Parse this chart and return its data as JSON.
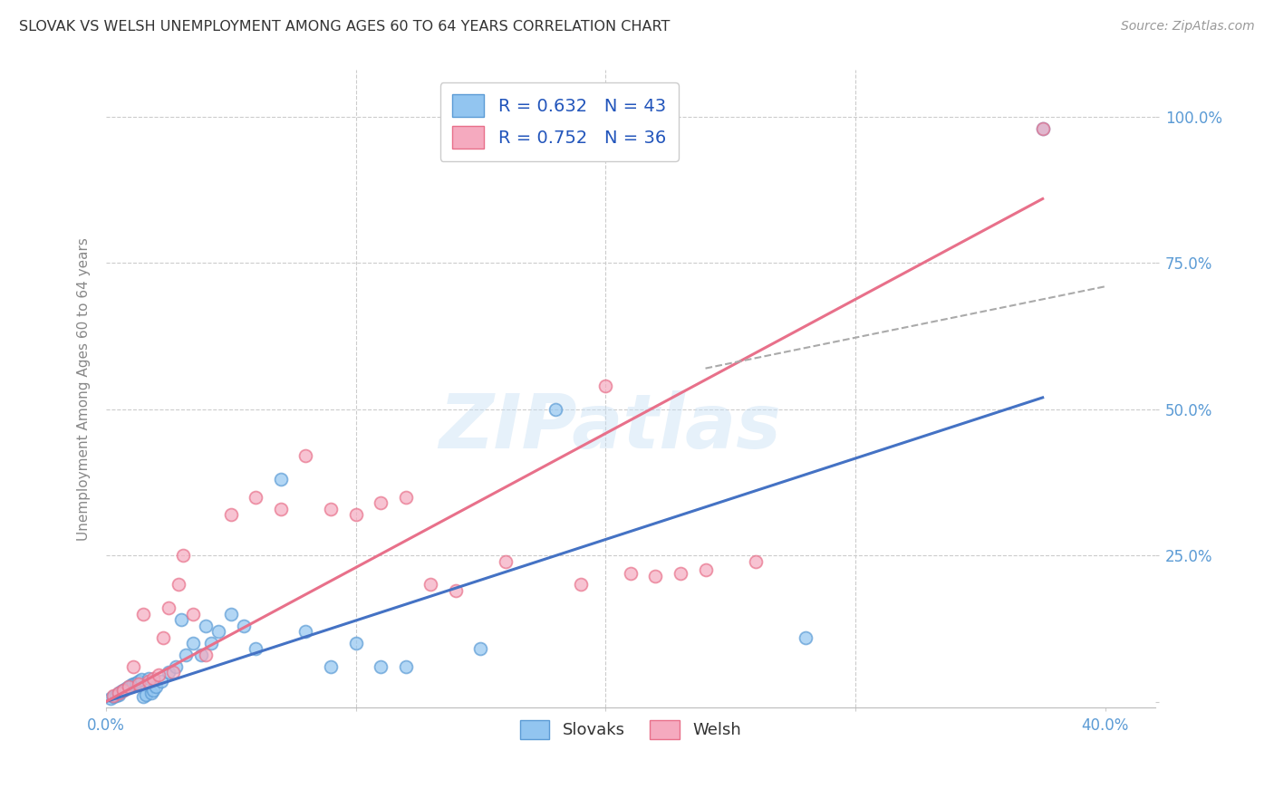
{
  "title": "SLOVAK VS WELSH UNEMPLOYMENT AMONG AGES 60 TO 64 YEARS CORRELATION CHART",
  "source": "Source: ZipAtlas.com",
  "ylabel": "Unemployment Among Ages 60 to 64 years",
  "xlim": [
    0.0,
    0.42
  ],
  "ylim": [
    -0.01,
    1.08
  ],
  "xtick_positions": [
    0.0,
    0.1,
    0.2,
    0.3,
    0.4
  ],
  "xtick_labels": [
    "0.0%",
    "",
    "",
    "",
    "40.0%"
  ],
  "ytick_positions": [
    0.0,
    0.25,
    0.5,
    0.75,
    1.0
  ],
  "ytick_labels": [
    "",
    "25.0%",
    "50.0%",
    "75.0%",
    "100.0%"
  ],
  "legend_line1": "R = 0.632   N = 43",
  "legend_line2": "R = 0.752   N = 36",
  "slovak_color": "#92C5F0",
  "welsh_color": "#F5AABF",
  "slovak_edge_color": "#5B9BD5",
  "welsh_edge_color": "#E8708A",
  "slovak_line_color": "#4472C4",
  "welsh_line_color": "#E8708A",
  "dashed_line_color": "#AAAAAA",
  "background_color": "#FFFFFF",
  "grid_color": "#CCCCCC",
  "title_color": "#333333",
  "source_color": "#999999",
  "axis_label_color": "#888888",
  "tick_label_color": "#5B9BD5",
  "slovak_scatter_x": [
    0.002,
    0.003,
    0.004,
    0.005,
    0.005,
    0.006,
    0.007,
    0.008,
    0.009,
    0.01,
    0.011,
    0.012,
    0.013,
    0.014,
    0.015,
    0.016,
    0.017,
    0.018,
    0.019,
    0.02,
    0.022,
    0.025,
    0.028,
    0.03,
    0.032,
    0.035,
    0.038,
    0.04,
    0.042,
    0.045,
    0.05,
    0.055,
    0.06,
    0.07,
    0.08,
    0.09,
    0.1,
    0.11,
    0.12,
    0.15,
    0.18,
    0.28,
    0.375
  ],
  "slovak_scatter_y": [
    0.005,
    0.008,
    0.01,
    0.012,
    0.015,
    0.018,
    0.02,
    0.022,
    0.025,
    0.028,
    0.03,
    0.032,
    0.035,
    0.038,
    0.008,
    0.012,
    0.04,
    0.015,
    0.02,
    0.025,
    0.035,
    0.05,
    0.06,
    0.14,
    0.08,
    0.1,
    0.08,
    0.13,
    0.1,
    0.12,
    0.15,
    0.13,
    0.09,
    0.38,
    0.12,
    0.06,
    0.1,
    0.06,
    0.06,
    0.09,
    0.5,
    0.11,
    0.98
  ],
  "welsh_scatter_x": [
    0.003,
    0.005,
    0.007,
    0.009,
    0.011,
    0.013,
    0.015,
    0.017,
    0.019,
    0.021,
    0.023,
    0.025,
    0.027,
    0.029,
    0.031,
    0.035,
    0.04,
    0.05,
    0.06,
    0.07,
    0.08,
    0.09,
    0.1,
    0.11,
    0.12,
    0.13,
    0.14,
    0.16,
    0.19,
    0.2,
    0.21,
    0.22,
    0.23,
    0.24,
    0.26,
    0.375
  ],
  "welsh_scatter_y": [
    0.01,
    0.015,
    0.02,
    0.025,
    0.06,
    0.03,
    0.15,
    0.035,
    0.04,
    0.045,
    0.11,
    0.16,
    0.05,
    0.2,
    0.25,
    0.15,
    0.08,
    0.32,
    0.35,
    0.33,
    0.42,
    0.33,
    0.32,
    0.34,
    0.35,
    0.2,
    0.19,
    0.24,
    0.2,
    0.54,
    0.22,
    0.215,
    0.22,
    0.225,
    0.24,
    0.98
  ],
  "slovak_trend_x": [
    0.0,
    0.375
  ],
  "slovak_trend_y": [
    0.0,
    0.52
  ],
  "welsh_trend_x": [
    0.0,
    0.375
  ],
  "welsh_trend_y": [
    0.0,
    0.86
  ],
  "dashed_trend_x": [
    0.24,
    0.4
  ],
  "dashed_trend_y": [
    0.57,
    0.71
  ],
  "watermark": "ZIPatlas",
  "marker_size": 100,
  "marker_lw": 1.3
}
